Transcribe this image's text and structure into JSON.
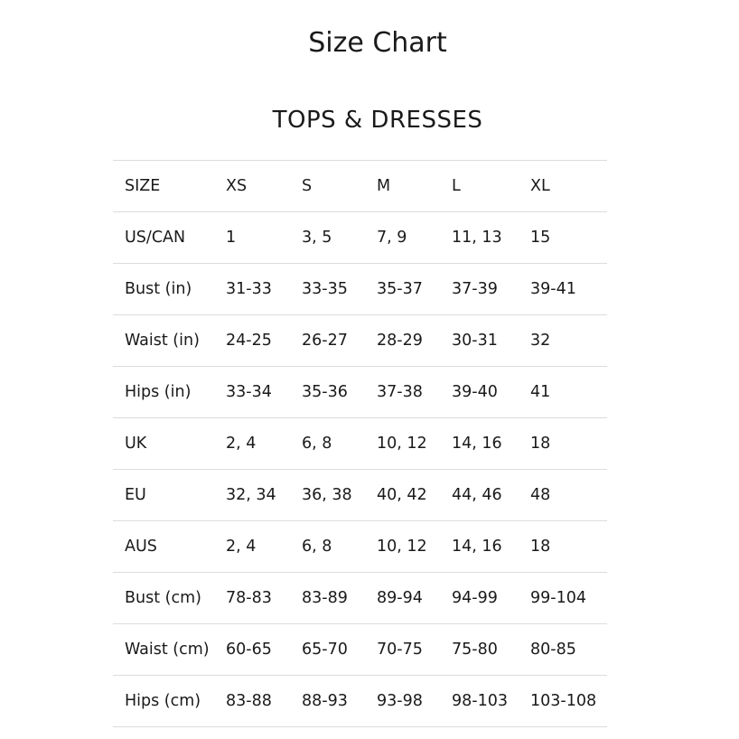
{
  "title": "Size Chart",
  "section_title": "TOPS & DRESSES",
  "table": {
    "header": [
      "SIZE",
      "XS",
      "S",
      "M",
      "L",
      "XL"
    ],
    "rows": [
      [
        "US/CAN",
        "1",
        "3, 5",
        "7, 9",
        "11, 13",
        "15"
      ],
      [
        "Bust (in)",
        "31-33",
        "33-35",
        "35-37",
        "37-39",
        "39-41"
      ],
      [
        "Waist (in)",
        "24-25",
        "26-27",
        "28-29",
        "30-31",
        "32"
      ],
      [
        "Hips (in)",
        "33-34",
        "35-36",
        "37-38",
        "39-40",
        "41"
      ],
      [
        "UK",
        "2, 4",
        "6, 8",
        "10, 12",
        "14, 16",
        "18"
      ],
      [
        "EU",
        "32, 34",
        "36, 38",
        "40, 42",
        "44, 46",
        "48"
      ],
      [
        "AUS",
        "2, 4",
        "6, 8",
        "10, 12",
        "14, 16",
        "18"
      ],
      [
        "Bust (cm)",
        "78-83",
        "83-89",
        "89-94",
        "94-99",
        "99-104"
      ],
      [
        "Waist (cm)",
        "60-65",
        "65-70",
        "70-75",
        "75-80",
        "80-85"
      ],
      [
        "Hips (cm)",
        "83-88",
        "88-93",
        "93-98",
        "98-103",
        "103-108"
      ]
    ]
  }
}
